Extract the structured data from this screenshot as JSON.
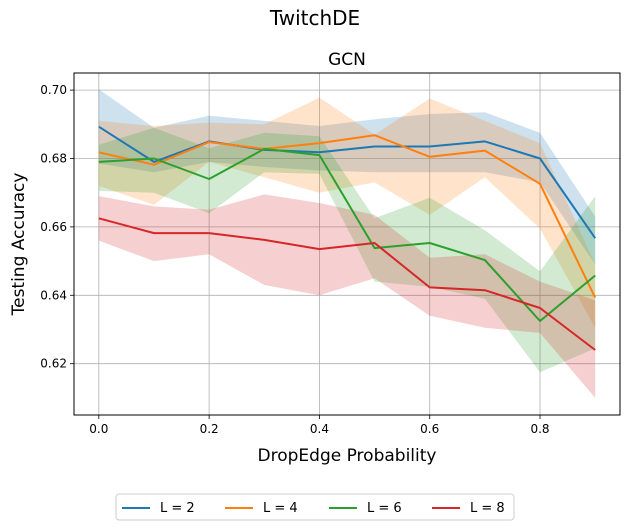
{
  "figure_title": "TwitchDE",
  "chart_data": {
    "type": "line",
    "title": "GCN",
    "xlabel": "DropEdge Probability",
    "ylabel": "Testing Accuracy",
    "x": [
      0.0,
      0.1,
      0.2,
      0.3,
      0.4,
      0.5,
      0.6,
      0.7,
      0.8,
      0.9
    ],
    "xlim": [
      -0.045,
      0.945
    ],
    "ylim": [
      0.605,
      0.705
    ],
    "xticks": [
      0.0,
      0.2,
      0.4,
      0.6,
      0.8
    ],
    "yticks": [
      0.62,
      0.64,
      0.66,
      0.68,
      0.7
    ],
    "xtick_labels": [
      "0.0",
      "0.2",
      "0.4",
      "0.6",
      "0.8"
    ],
    "ytick_labels": [
      "0.62",
      "0.64",
      "0.66",
      "0.68",
      "0.70"
    ],
    "grid": true,
    "legend_position": "bottom-center, outside",
    "series": [
      {
        "name": "L = 2",
        "color": "#1f77b4",
        "values": [
          0.6893,
          0.679,
          0.685,
          0.6825,
          0.6818,
          0.6835,
          0.6835,
          0.685,
          0.68,
          0.6567
        ],
        "lower": [
          0.6785,
          0.676,
          0.679,
          0.6775,
          0.6765,
          0.676,
          0.676,
          0.676,
          0.673,
          0.649
        ],
        "upper": [
          0.7002,
          0.689,
          0.6925,
          0.691,
          0.6895,
          0.6915,
          0.693,
          0.6935,
          0.6875,
          0.663
        ]
      },
      {
        "name": "L = 4",
        "color": "#ff7f0e",
        "values": [
          0.6818,
          0.6782,
          0.6848,
          0.6828,
          0.6845,
          0.6868,
          0.6805,
          0.6823,
          0.6726,
          0.6393
        ],
        "lower": [
          0.672,
          0.6665,
          0.679,
          0.6745,
          0.67,
          0.673,
          0.6635,
          0.6745,
          0.6595,
          0.6305
        ],
        "upper": [
          0.691,
          0.6895,
          0.6905,
          0.69,
          0.6978,
          0.687,
          0.6975,
          0.691,
          0.6845,
          0.649
        ]
      },
      {
        "name": "L = 6",
        "color": "#2ca02c",
        "values": [
          0.679,
          0.68,
          0.674,
          0.6828,
          0.681,
          0.6538,
          0.6553,
          0.6503,
          0.6325,
          0.6458
        ],
        "lower": [
          0.6705,
          0.67,
          0.664,
          0.676,
          0.6755,
          0.644,
          0.6425,
          0.639,
          0.6175,
          0.6245
        ],
        "upper": [
          0.684,
          0.689,
          0.683,
          0.6875,
          0.6865,
          0.6625,
          0.6685,
          0.659,
          0.647,
          0.669
        ]
      },
      {
        "name": "L = 8",
        "color": "#d62728",
        "values": [
          0.6625,
          0.6582,
          0.6582,
          0.6562,
          0.6535,
          0.6553,
          0.6423,
          0.6415,
          0.6363,
          0.624
        ],
        "lower": [
          0.656,
          0.65,
          0.652,
          0.643,
          0.64,
          0.645,
          0.634,
          0.6305,
          0.629,
          0.61
        ],
        "upper": [
          0.669,
          0.666,
          0.665,
          0.6695,
          0.667,
          0.6635,
          0.651,
          0.652,
          0.644,
          0.6385
        ]
      }
    ]
  }
}
